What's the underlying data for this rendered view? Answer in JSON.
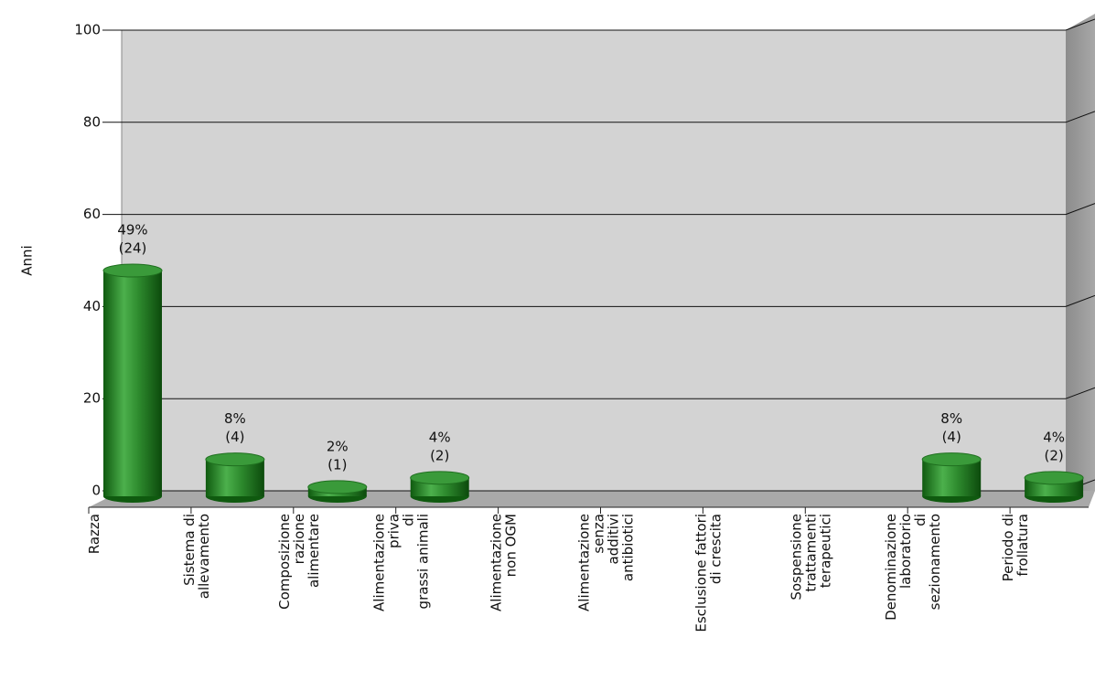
{
  "chart_data": {
    "type": "bar",
    "y_label": "Anni",
    "categories": [
      "Razza",
      "Sistema di\nallevamento",
      "Composizione\nrazione\nalimentare",
      "Alimentazione\npriva\ndi\ngrassi animali",
      "Alimentazione\nnon OGM",
      "Alimentazione\nsenza\nadditivi\nantibiotici",
      "Esclusione fattori\ndi crescita",
      "Sospensione\ntrattamenti\nterapeutici",
      "Denominazione\nlaboratorio\ndi\nsezionamento",
      "Periodo di\nfrollatura"
    ],
    "values": [
      49,
      8,
      2,
      4,
      0,
      0,
      0,
      0,
      8,
      4
    ],
    "value_labels": [
      "49%",
      "8%",
      "2%",
      "4%",
      null,
      null,
      null,
      null,
      "8%",
      "4%"
    ],
    "counts": [
      24,
      4,
      1,
      2,
      0,
      0,
      0,
      0,
      4,
      2
    ],
    "count_labels": [
      "(24)",
      "(4)",
      "(1)",
      "(2)",
      null,
      null,
      null,
      null,
      "(4)",
      "(2)"
    ],
    "color": "#2e8b2e",
    "ylim": [
      0,
      100
    ],
    "yticks": [
      0,
      20,
      40,
      60,
      80,
      100
    ],
    "grid": true
  }
}
